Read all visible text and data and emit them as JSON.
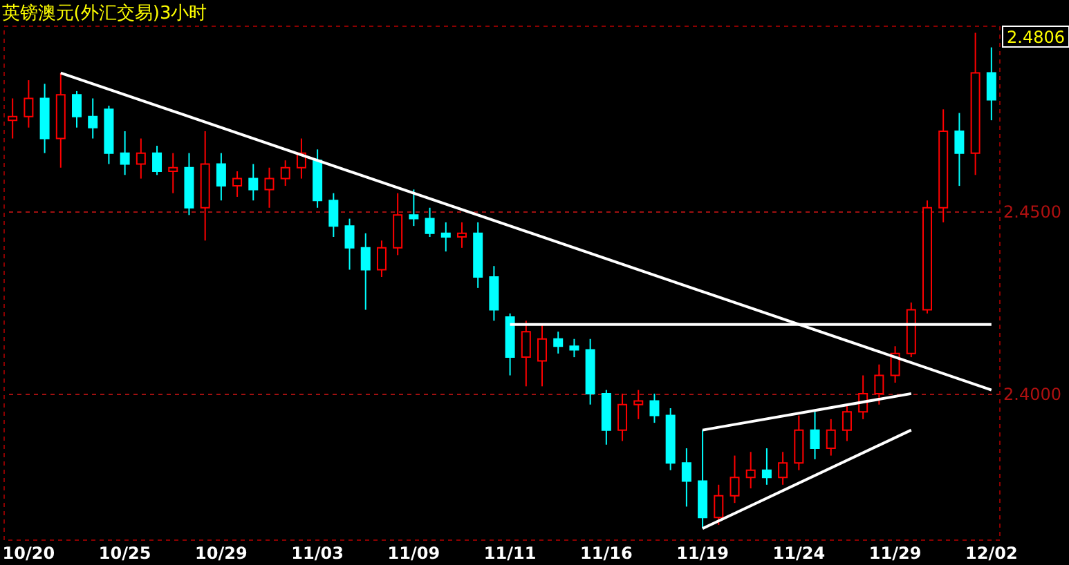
{
  "chart_data": {
    "type": "candlestick",
    "title": "英镑澳元(外汇交易)3小时",
    "categories": [
      null,
      "10/20",
      null,
      null,
      null,
      null,
      null,
      "10/25",
      null,
      null,
      null,
      null,
      null,
      "10/29",
      null,
      null,
      null,
      null,
      null,
      "11/03",
      null,
      null,
      null,
      null,
      null,
      "11/09",
      null,
      null,
      null,
      null,
      null,
      "11/11",
      null,
      null,
      null,
      null,
      null,
      "11/16",
      null,
      null,
      null,
      null,
      null,
      "11/19",
      null,
      null,
      null,
      null,
      null,
      "11/24",
      null,
      null,
      null,
      null,
      null,
      "11/29",
      null,
      null,
      null,
      null,
      null,
      "12/02"
    ],
    "ohlc": [
      [
        2.475,
        2.481,
        2.47,
        2.476
      ],
      [
        2.476,
        2.486,
        2.473,
        2.481
      ],
      [
        2.481,
        2.485,
        2.466,
        2.47
      ],
      [
        2.47,
        2.488,
        2.462,
        2.482
      ],
      [
        2.482,
        2.483,
        2.473,
        2.476
      ],
      [
        2.476,
        2.481,
        2.47,
        2.473
      ],
      [
        2.478,
        2.479,
        2.463,
        2.466
      ],
      [
        2.466,
        2.472,
        2.46,
        2.463
      ],
      [
        2.463,
        2.47,
        2.459,
        2.466
      ],
      [
        2.466,
        2.468,
        2.46,
        2.461
      ],
      [
        2.461,
        2.466,
        2.455,
        2.462
      ],
      [
        2.462,
        2.466,
        2.449,
        2.451
      ],
      [
        2.451,
        2.472,
        2.442,
        2.463
      ],
      [
        2.463,
        2.466,
        2.453,
        2.457
      ],
      [
        2.457,
        2.461,
        2.454,
        2.459
      ],
      [
        2.459,
        2.463,
        2.453,
        2.456
      ],
      [
        2.456,
        2.462,
        2.451,
        2.459
      ],
      [
        2.459,
        2.464,
        2.457,
        2.462
      ],
      [
        2.462,
        2.47,
        2.459,
        2.466
      ],
      [
        2.464,
        2.467,
        2.451,
        2.453
      ],
      [
        2.453,
        2.455,
        2.443,
        2.446
      ],
      [
        2.446,
        2.448,
        2.434,
        2.44
      ],
      [
        2.44,
        2.444,
        2.423,
        2.434
      ],
      [
        2.434,
        2.442,
        2.432,
        2.44
      ],
      [
        2.44,
        2.455,
        2.438,
        2.449
      ],
      [
        2.449,
        2.456,
        2.446,
        2.448
      ],
      [
        2.448,
        2.451,
        2.443,
        2.444
      ],
      [
        2.444,
        2.447,
        2.439,
        2.443
      ],
      [
        2.443,
        2.447,
        2.44,
        2.444
      ],
      [
        2.444,
        2.447,
        2.429,
        2.432
      ],
      [
        2.432,
        2.435,
        2.42,
        2.423
      ],
      [
        2.421,
        2.422,
        2.405,
        2.41
      ],
      [
        2.41,
        2.42,
        2.402,
        2.417
      ],
      [
        2.409,
        2.419,
        2.402,
        2.415
      ],
      [
        2.415,
        2.417,
        2.411,
        2.413
      ],
      [
        2.413,
        2.415,
        2.41,
        2.412
      ],
      [
        2.412,
        2.415,
        2.397,
        2.4
      ],
      [
        2.4,
        2.401,
        2.386,
        2.39
      ],
      [
        2.39,
        2.4,
        2.387,
        2.397
      ],
      [
        2.397,
        2.401,
        2.393,
        2.398
      ],
      [
        2.398,
        2.4,
        2.392,
        2.394
      ],
      [
        2.394,
        2.396,
        2.379,
        2.381
      ],
      [
        2.381,
        2.385,
        2.369,
        2.376
      ],
      [
        2.376,
        2.39,
        2.363,
        2.366
      ],
      [
        2.366,
        2.375,
        2.364,
        2.372
      ],
      [
        2.372,
        2.383,
        2.37,
        2.377
      ],
      [
        2.377,
        2.384,
        2.374,
        2.379
      ],
      [
        2.379,
        2.385,
        2.375,
        2.377
      ],
      [
        2.377,
        2.384,
        2.375,
        2.381
      ],
      [
        2.381,
        2.394,
        2.379,
        2.39
      ],
      [
        2.39,
        2.395,
        2.382,
        2.385
      ],
      [
        2.385,
        2.393,
        2.383,
        2.39
      ],
      [
        2.39,
        2.397,
        2.387,
        2.395
      ],
      [
        2.395,
        2.405,
        2.393,
        2.4
      ],
      [
        2.4,
        2.408,
        2.397,
        2.405
      ],
      [
        2.405,
        2.413,
        2.403,
        2.411
      ],
      [
        2.411,
        2.425,
        2.41,
        2.423
      ],
      [
        2.423,
        2.453,
        2.422,
        2.451
      ],
      [
        2.451,
        2.478,
        2.447,
        2.472
      ],
      [
        2.472,
        2.477,
        2.457,
        2.466
      ],
      [
        2.466,
        2.499,
        2.46,
        2.488
      ],
      [
        2.488,
        2.495,
        2.475,
        2.4806
      ]
    ],
    "colors": [
      "#ff0000",
      "#ff0000",
      "#00ffff",
      "#ff0000",
      "#00ffff",
      "#00ffff",
      "#00ffff",
      "#00ffff",
      "#ff0000",
      "#00ffff",
      "#ff0000",
      "#00ffff",
      "#ff0000",
      "#00ffff",
      "#ff0000",
      "#00ffff",
      "#ff0000",
      "#ff0000",
      "#ff0000",
      "#00ffff",
      "#00ffff",
      "#00ffff",
      "#00ffff",
      "#ff0000",
      "#ff0000",
      "#00ffff",
      "#00ffff",
      "#00ffff",
      "#ff0000",
      "#00ffff",
      "#00ffff",
      "#00ffff",
      "#ff0000",
      "#ff0000",
      "#00ffff",
      "#00ffff",
      "#00ffff",
      "#00ffff",
      "#ff0000",
      "#ff0000",
      "#00ffff",
      "#00ffff",
      "#00ffff",
      "#00ffff",
      "#ff0000",
      "#ff0000",
      "#ff0000",
      "#00ffff",
      "#ff0000",
      "#ff0000",
      "#00ffff",
      "#ff0000",
      "#ff0000",
      "#ff0000",
      "#ff0000",
      "#ff0000",
      "#ff0000",
      "#ff0000",
      "#ff0000",
      "#00ffff",
      "#ff0000",
      "#00ffff"
    ],
    "series": [
      {
        "type": "line",
        "color": "#ffffff",
        "values": [
          null,
          null,
          null,
          2.488,
          null,
          null,
          null,
          null,
          null,
          null,
          null,
          null,
          null,
          null,
          null,
          null,
          null,
          null,
          null,
          null,
          null,
          null,
          null,
          null,
          null,
          null,
          null,
          null,
          null,
          null,
          null,
          null,
          null,
          null,
          null,
          null,
          null,
          null,
          null,
          null,
          null,
          null,
          null,
          null,
          null,
          null,
          null,
          null,
          null,
          null,
          null,
          null,
          null,
          null,
          null,
          null,
          null,
          null,
          null,
          null,
          null,
          2.401
        ]
      },
      {
        "type": "line",
        "color": "#ffffff",
        "values": [
          null,
          null,
          null,
          null,
          null,
          null,
          null,
          null,
          null,
          null,
          null,
          null,
          null,
          null,
          null,
          null,
          null,
          null,
          null,
          null,
          null,
          null,
          null,
          null,
          null,
          null,
          null,
          null,
          null,
          null,
          null,
          2.419,
          null,
          null,
          null,
          null,
          null,
          null,
          null,
          null,
          null,
          null,
          null,
          null,
          null,
          null,
          null,
          null,
          null,
          null,
          null,
          null,
          null,
          null,
          null,
          null,
          null,
          null,
          null,
          null,
          null,
          2.419
        ]
      },
      {
        "type": "line",
        "color": "#ffffff",
        "values": [
          null,
          null,
          null,
          null,
          null,
          null,
          null,
          null,
          null,
          null,
          null,
          null,
          null,
          null,
          null,
          null,
          null,
          null,
          null,
          null,
          null,
          null,
          null,
          null,
          null,
          null,
          null,
          null,
          null,
          null,
          null,
          null,
          null,
          null,
          null,
          null,
          null,
          null,
          null,
          null,
          null,
          null,
          null,
          2.39,
          null,
          null,
          null,
          null,
          null,
          null,
          null,
          null,
          null,
          null,
          null,
          null,
          2.4,
          null,
          null,
          null,
          null,
          null
        ]
      },
      {
        "type": "line",
        "color": "#ffffff",
        "values": [
          null,
          null,
          null,
          null,
          null,
          null,
          null,
          null,
          null,
          null,
          null,
          null,
          null,
          null,
          null,
          null,
          null,
          null,
          null,
          null,
          null,
          null,
          null,
          null,
          null,
          null,
          null,
          null,
          null,
          null,
          null,
          null,
          null,
          null,
          null,
          null,
          null,
          null,
          null,
          null,
          null,
          null,
          null,
          2.363,
          null,
          null,
          null,
          null,
          null,
          null,
          null,
          null,
          null,
          null,
          null,
          null,
          2.39,
          null,
          null,
          null,
          null,
          null
        ]
      }
    ],
    "ylim": [
      2.3598,
      2.5008
    ],
    "yticks": [
      {
        "value": 2.4,
        "label": "2.4000"
      },
      {
        "value": 2.45,
        "label": "2.4500"
      }
    ],
    "grid": "y",
    "annotations": [
      "2.4806"
    ]
  }
}
